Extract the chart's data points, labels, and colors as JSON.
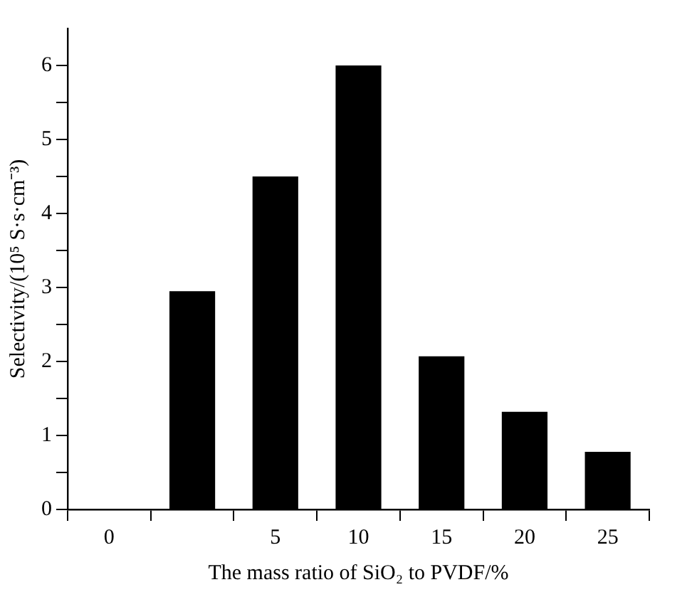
{
  "chart_data": {
    "type": "bar",
    "xlabel": "The mass ratio of SiO₂ to PVDF/%",
    "ylabel": "Selectivity/(10⁵ S·s·cm⁻³)",
    "categories": [
      "0",
      null,
      "5",
      "10",
      "15",
      "20",
      "25"
    ],
    "values": [
      null,
      2.95,
      4.5,
      6.0,
      2.07,
      1.32,
      0.78
    ],
    "color": "#000000",
    "ylim": [
      0,
      6.5
    ],
    "yticks": [
      0,
      {
        "value": 0.5,
        "label": null
      },
      1,
      {
        "value": 1.5,
        "label": null
      },
      2,
      {
        "value": 2.5,
        "label": null
      },
      3,
      {
        "value": 3.5,
        "label": null
      },
      4,
      {
        "value": 4.5,
        "label": null
      },
      5,
      {
        "value": 5.5,
        "label": null
      },
      6
    ],
    "grid": false,
    "legend": false
  }
}
